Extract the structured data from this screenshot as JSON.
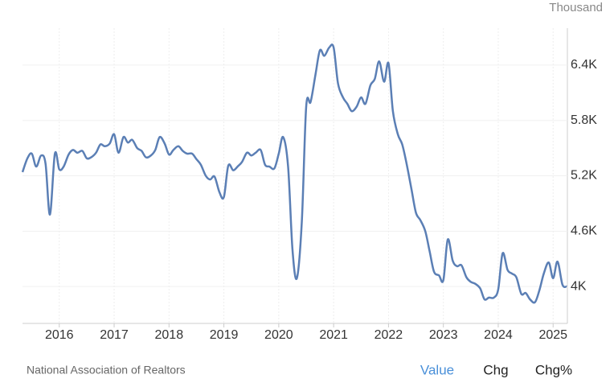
{
  "chart_data": {
    "type": "line",
    "y_axis_label": "Thousand",
    "x": [
      2015.33,
      2015.42,
      2015.5,
      2015.58,
      2015.67,
      2015.75,
      2015.83,
      2015.92,
      2016.0,
      2016.08,
      2016.17,
      2016.25,
      2016.33,
      2016.42,
      2016.5,
      2016.58,
      2016.67,
      2016.75,
      2016.83,
      2016.92,
      2017.0,
      2017.08,
      2017.17,
      2017.25,
      2017.33,
      2017.42,
      2017.5,
      2017.58,
      2017.67,
      2017.75,
      2017.83,
      2017.92,
      2018.0,
      2018.08,
      2018.17,
      2018.25,
      2018.33,
      2018.42,
      2018.5,
      2018.58,
      2018.67,
      2018.75,
      2018.83,
      2018.92,
      2019.0,
      2019.08,
      2019.17,
      2019.25,
      2019.33,
      2019.42,
      2019.5,
      2019.58,
      2019.67,
      2019.75,
      2019.83,
      2019.92,
      2020.0,
      2020.08,
      2020.17,
      2020.25,
      2020.33,
      2020.42,
      2020.5,
      2020.58,
      2020.67,
      2020.75,
      2020.83,
      2020.92,
      2021.0,
      2021.08,
      2021.17,
      2021.25,
      2021.33,
      2021.42,
      2021.5,
      2021.58,
      2021.67,
      2021.75,
      2021.83,
      2021.92,
      2022.0,
      2022.08,
      2022.17,
      2022.25,
      2022.33,
      2022.42,
      2022.5,
      2022.58,
      2022.67,
      2022.75,
      2022.83,
      2022.92,
      2023.0,
      2023.08,
      2023.17,
      2023.25,
      2023.33,
      2023.42,
      2023.5,
      2023.58,
      2023.67,
      2023.75,
      2023.83,
      2023.92,
      2024.0,
      2024.08,
      2024.17,
      2024.25,
      2024.33,
      2024.42,
      2024.5,
      2024.58,
      2024.67,
      2024.75,
      2024.83,
      2024.92,
      2025.0,
      2025.08,
      2025.17,
      2025.25
    ],
    "series": [
      {
        "name": "Value",
        "color": "#5b7fb5",
        "values": [
          5240,
          5390,
          5440,
          5300,
          5420,
          5330,
          4780,
          5440,
          5270,
          5300,
          5430,
          5480,
          5450,
          5470,
          5390,
          5400,
          5450,
          5540,
          5520,
          5550,
          5650,
          5450,
          5620,
          5560,
          5590,
          5500,
          5470,
          5400,
          5420,
          5480,
          5620,
          5550,
          5430,
          5480,
          5520,
          5470,
          5440,
          5440,
          5380,
          5320,
          5200,
          5160,
          5190,
          5020,
          4970,
          5310,
          5260,
          5300,
          5350,
          5450,
          5420,
          5450,
          5480,
          5320,
          5300,
          5280,
          5440,
          5620,
          5300,
          4400,
          4090,
          4700,
          5950,
          6000,
          6300,
          6560,
          6500,
          6590,
          6590,
          6200,
          6050,
          5980,
          5900,
          5950,
          6050,
          5980,
          6180,
          6250,
          6440,
          6220,
          6420,
          5900,
          5650,
          5540,
          5330,
          5050,
          4800,
          4720,
          4600,
          4380,
          4160,
          4120,
          4070,
          4510,
          4280,
          4220,
          4230,
          4100,
          4050,
          4030,
          3980,
          3860,
          3880,
          3880,
          3970,
          4360,
          4180,
          4140,
          4100,
          3920,
          3930,
          3860,
          3830,
          3960,
          4140,
          4260,
          4090,
          4270,
          4020,
          4000
        ]
      }
    ],
    "xlim": [
      2015.33,
      2025.26
    ],
    "xticks": [
      2016,
      2017,
      2018,
      2019,
      2020,
      2021,
      2022,
      2023,
      2024,
      2025
    ],
    "ylim": [
      3600,
      6800
    ],
    "yticks": [
      {
        "value": 4000,
        "label": "4K"
      },
      {
        "value": 4600,
        "label": "4.6K"
      },
      {
        "value": 5200,
        "label": "5.2K"
      },
      {
        "value": 5800,
        "label": "5.8K"
      },
      {
        "value": 6400,
        "label": "6.4K"
      }
    ],
    "grid": true
  },
  "source": "National Association of Realtors",
  "tabs": [
    "Value",
    "Chg",
    "Chg%"
  ]
}
